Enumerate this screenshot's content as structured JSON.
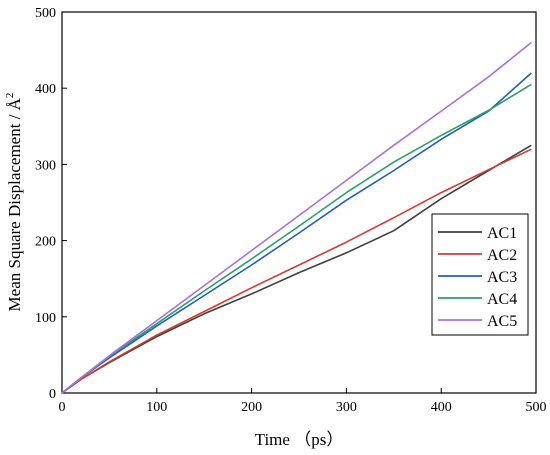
{
  "chart_data": {
    "type": "line",
    "title": "",
    "xlabel": "Time （ps）",
    "ylabel_main": "Mean Square Displacement / Å",
    "ylabel_sup": "2",
    "xlim": [
      0,
      500
    ],
    "ylim": [
      0,
      500
    ],
    "xticks": [
      0,
      100,
      200,
      300,
      400,
      500
    ],
    "yticks": [
      0,
      100,
      200,
      300,
      400,
      500
    ],
    "grid": false,
    "legend_position": "bottom-right",
    "x": [
      0,
      20,
      50,
      100,
      150,
      200,
      250,
      300,
      350,
      400,
      450,
      495
    ],
    "series": [
      {
        "name": "AC1",
        "color": "#404040",
        "values": [
          0,
          18,
          40,
          74,
          104,
          130,
          158,
          184,
          213,
          255,
          292,
          325
        ]
      },
      {
        "name": "AC2",
        "color": "#d63a30",
        "values": [
          0,
          18,
          41,
          76,
          107,
          138,
          168,
          198,
          230,
          263,
          293,
          320
        ]
      },
      {
        "name": "AC3",
        "color": "#1f5fc0",
        "values": [
          0,
          20,
          46,
          88,
          128,
          168,
          210,
          253,
          292,
          333,
          370,
          420
        ]
      },
      {
        "name": "AC4",
        "color": "#2aa067",
        "values": [
          0,
          20,
          48,
          91,
          134,
          176,
          219,
          263,
          303,
          338,
          371,
          405
        ]
      },
      {
        "name": "AC5",
        "color": "#a970dd",
        "values": [
          0,
          20,
          49,
          95,
          141,
          187,
          233,
          279,
          325,
          370,
          415,
          460
        ]
      }
    ]
  }
}
